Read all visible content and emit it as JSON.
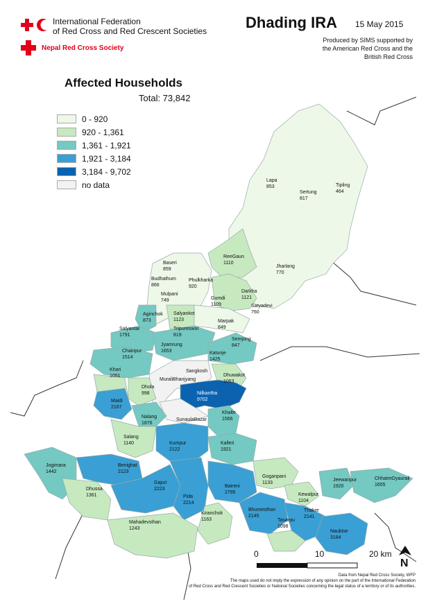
{
  "header": {
    "org_line1": "International Federation",
    "org_line2": "of Red Cross and Red Crescent Societies",
    "nrcs": "Nepal Red Cross Society",
    "title": "Dhading IRA",
    "date": "15 May 2015",
    "produced_line1": "Produced by SIMS supported by",
    "produced_line2": "the American Red Cross and the",
    "produced_line3": "British Red Cross"
  },
  "legend": {
    "title": "Affected Households",
    "total": "Total: 73,842",
    "classes": [
      {
        "label": "0 - 920",
        "color": "#edf8e9"
      },
      {
        "label": "920 - 1,361",
        "color": "#c7e9c0"
      },
      {
        "label": "1,361 - 1,921",
        "color": "#74c9c2"
      },
      {
        "label": "1,921 - 3,184",
        "color": "#3a9fd4"
      },
      {
        "label": "3,184 - 9,702",
        "color": "#0b63b0"
      },
      {
        "label": "no data",
        "color": "#f2f2f2"
      }
    ]
  },
  "vdcs": [
    {
      "name": "Lapa",
      "value": "853"
    },
    {
      "name": "Sertung",
      "value": "817"
    },
    {
      "name": "Tipling",
      "value": "464"
    },
    {
      "name": "ReeGaun",
      "value": "1110"
    },
    {
      "name": "Jharlang",
      "value": "770"
    },
    {
      "name": "Baseri",
      "value": "859"
    },
    {
      "name": "Budhathum",
      "value": "866"
    },
    {
      "name": "Phulkharka",
      "value": "920"
    },
    {
      "name": "Mulpani",
      "value": "749"
    },
    {
      "name": "Gumdi",
      "value": "1109"
    },
    {
      "name": "Darkha",
      "value": "1121"
    },
    {
      "name": "Aginchok",
      "value": "873"
    },
    {
      "name": "Salyankot",
      "value": "1123"
    },
    {
      "name": "Satyadevi",
      "value": "760"
    },
    {
      "name": "Marpak",
      "value": "849"
    },
    {
      "name": "Salyantar",
      "value": "1791"
    },
    {
      "name": "Tripureswor",
      "value": "819"
    },
    {
      "name": "Semjong",
      "value": "847"
    },
    {
      "name": "Jyamrung",
      "value": "1653"
    },
    {
      "name": "Chainpur",
      "value": "1514"
    },
    {
      "name": "Katunje",
      "value": "1425"
    },
    {
      "name": "Sangkosh",
      "value": ""
    },
    {
      "name": "Khari",
      "value": "1051"
    },
    {
      "name": "MuraliBhanjyang",
      "value": ""
    },
    {
      "name": "Dhuwakot",
      "value": "1063"
    },
    {
      "name": "Dhola",
      "value": "998"
    },
    {
      "name": "Nilkantha",
      "value": "9702"
    },
    {
      "name": "Maidi",
      "value": "2167"
    },
    {
      "name": "SunaulaBazar",
      "value": ""
    },
    {
      "name": "Nalang",
      "value": "1876"
    },
    {
      "name": "Khalte",
      "value": "1566"
    },
    {
      "name": "Salang",
      "value": "1140"
    },
    {
      "name": "Kumpur",
      "value": "2122"
    },
    {
      "name": "Kalleri",
      "value": "1921"
    },
    {
      "name": "Jogimara",
      "value": "1442"
    },
    {
      "name": "Benighat",
      "value": "2123"
    },
    {
      "name": "Goganpani",
      "value": "1133"
    },
    {
      "name": "Dhussa",
      "value": "1361"
    },
    {
      "name": "Gajuri",
      "value": "2223"
    },
    {
      "name": "Baireni",
      "value": "2795"
    },
    {
      "name": "Kewalpur",
      "value": "1104"
    },
    {
      "name": "Jeewanpur",
      "value": "1920"
    },
    {
      "name": "ChhatreDyaurali",
      "value": "1655"
    },
    {
      "name": "Pida",
      "value": "2214"
    },
    {
      "name": "Kiranchok",
      "value": "1163"
    },
    {
      "name": "Bhumesthan",
      "value": "2145"
    },
    {
      "name": "Thakre",
      "value": "2141"
    },
    {
      "name": "Tasarpu",
      "value": "1098"
    },
    {
      "name": "Mahadevsthan",
      "value": "1243"
    },
    {
      "name": "Naubise",
      "value": "3184"
    }
  ],
  "scale": {
    "zero": "0",
    "mid": "10",
    "end": "20 km"
  },
  "north": "N",
  "footer": {
    "line1": "Data from Nepal Red Cross Society, WFP",
    "line2": "The maps used do not imply the expression of any opinion on the part of the International Federation",
    "line3": "of Red Cross and Red Crescent Societies or National Societies concerning the legal status of a territory or of its authorities."
  }
}
